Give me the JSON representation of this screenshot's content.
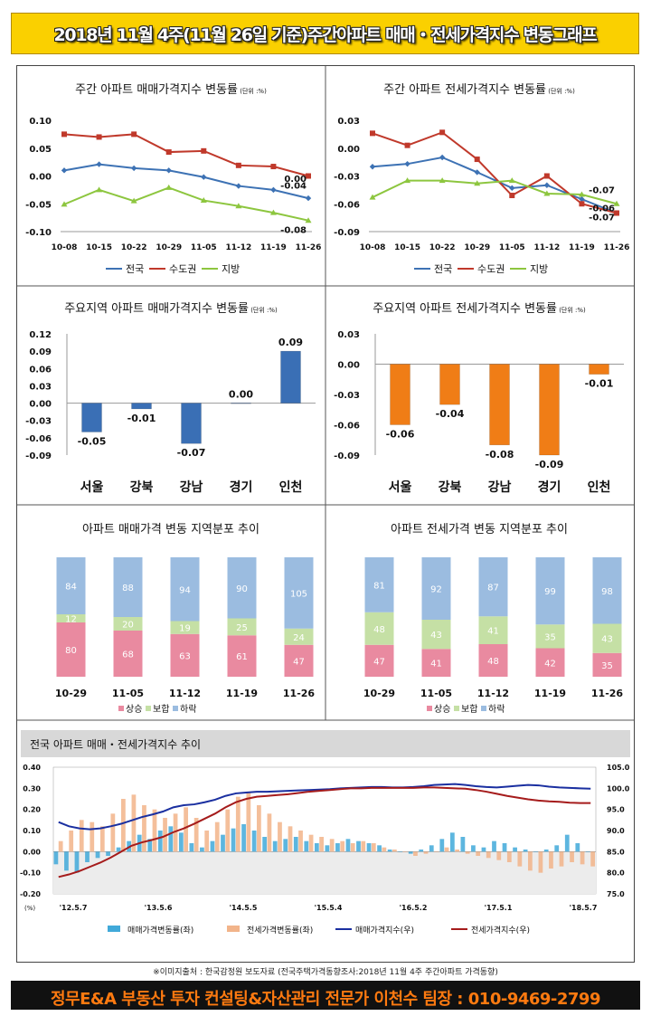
{
  "header": {
    "title": "2018년 11월 4주(11월 26일 기준)주간아파트 매매・전세가격지수 변동그래프"
  },
  "footer": {
    "text": "정무E&A 부동산 투자 컨설팅&자산관리 전문가 이천수 팀장 : 010-9469-2799"
  },
  "source": "※이미지출처 : 한국감정원 보도자료 (전국주택가격동향조사:2018년 11월 4주 주간아파트 가격동향)",
  "chart_data": [
    {
      "id": "weekly-sale",
      "type": "line",
      "title": "주간 아파트 매매가격지수 변동률",
      "unit": "(단위 :%)",
      "categories": [
        "10-08",
        "10-15",
        "10-22",
        "10-29",
        "11-05",
        "11-12",
        "11-19",
        "11-26"
      ],
      "ylim": [
        -0.1,
        0.1
      ],
      "yticks": [
        "0.10",
        "0.05",
        "0.00",
        "-0.05",
        "-0.10"
      ],
      "series": [
        {
          "name": "전국",
          "color": "#3d72b4",
          "values": [
            0.01,
            0.021,
            0.014,
            0.01,
            -0.002,
            -0.018,
            -0.025,
            -0.04
          ]
        },
        {
          "name": "수도권",
          "color": "#c0392b",
          "values": [
            0.075,
            0.07,
            0.075,
            0.043,
            0.045,
            0.019,
            0.017,
            0.0
          ]
        },
        {
          "name": "지방",
          "color": "#8dc63f",
          "values": [
            -0.051,
            -0.025,
            -0.045,
            -0.021,
            -0.044,
            -0.054,
            -0.066,
            -0.08
          ]
        }
      ],
      "end_labels": [
        "0.00",
        "-0.04",
        "-0.08"
      ]
    },
    {
      "id": "weekly-jeonse",
      "type": "line",
      "title": "주간 아파트 전세가격지수 변동률",
      "unit": "(단위 :%)",
      "categories": [
        "10-08",
        "10-15",
        "10-22",
        "10-29",
        "11-05",
        "11-12",
        "11-19",
        "11-26"
      ],
      "ylim": [
        -0.09,
        0.03
      ],
      "yticks": [
        "0.03",
        "0.00",
        "-0.03",
        "-0.06",
        "-0.09"
      ],
      "series": [
        {
          "name": "전국",
          "color": "#3d72b4",
          "values": [
            -0.02,
            -0.017,
            -0.01,
            -0.026,
            -0.043,
            -0.04,
            -0.055,
            -0.07
          ]
        },
        {
          "name": "수도권",
          "color": "#c0392b",
          "values": [
            0.016,
            0.003,
            0.017,
            -0.012,
            -0.051,
            -0.03,
            -0.06,
            -0.07
          ]
        },
        {
          "name": "지방",
          "color": "#8dc63f",
          "values": [
            -0.053,
            -0.035,
            -0.035,
            -0.038,
            -0.035,
            -0.049,
            -0.05,
            -0.06
          ]
        }
      ],
      "end_labels": [
        "-0.07",
        "-0.06",
        "-0.07"
      ]
    },
    {
      "id": "region-sale",
      "type": "bar",
      "title": "주요지역 아파트 매매가격지수 변동률",
      "unit": "(단위 :%)",
      "categories": [
        "서울",
        "강북",
        "강남",
        "경기",
        "인천"
      ],
      "values": [
        -0.05,
        -0.01,
        -0.07,
        0.0,
        0.09
      ],
      "labels": [
        "-0.05",
        "-0.01",
        "-0.07",
        "0.00",
        "0.09"
      ],
      "ylim": [
        -0.09,
        0.12
      ],
      "yticks": [
        "0.12",
        "0.09",
        "0.06",
        "0.03",
        "0.00",
        "-0.03",
        "-0.06",
        "-0.09"
      ],
      "color": "#3a6fb5"
    },
    {
      "id": "region-jeonse",
      "type": "bar",
      "title": "주요지역 아파트 전세가격지수 변동률",
      "unit": "(단위 :%)",
      "categories": [
        "서울",
        "강북",
        "강남",
        "경기",
        "인천"
      ],
      "values": [
        -0.06,
        -0.04,
        -0.08,
        -0.09,
        -0.01
      ],
      "labels": [
        "-0.06",
        "-0.04",
        "-0.08",
        "-0.09",
        "-0.01"
      ],
      "ylim": [
        -0.09,
        0.03
      ],
      "yticks": [
        "0.03",
        "0.00",
        "-0.03",
        "-0.06",
        "-0.09"
      ],
      "color": "#f07d16"
    },
    {
      "id": "dist-sale",
      "type": "bar",
      "stacked": true,
      "title": "아파트 매매가격 변동 지역분포 추이",
      "categories": [
        "10-29",
        "11-05",
        "11-12",
        "11-19",
        "11-26"
      ],
      "series": [
        {
          "name": "상승",
          "color": "#e98aa0",
          "values": [
            80,
            68,
            63,
            61,
            47
          ]
        },
        {
          "name": "보합",
          "color": "#c5e0a5",
          "values": [
            12,
            20,
            19,
            25,
            24
          ]
        },
        {
          "name": "하락",
          "color": "#9bbce0",
          "values": [
            84,
            88,
            94,
            90,
            105
          ]
        }
      ]
    },
    {
      "id": "dist-jeonse",
      "type": "bar",
      "stacked": true,
      "title": "아파트 전세가격 변동 지역분포 추이",
      "categories": [
        "10-29",
        "11-05",
        "11-12",
        "11-19",
        "11-26"
      ],
      "series": [
        {
          "name": "상승",
          "color": "#e98aa0",
          "values": [
            47,
            41,
            48,
            42,
            35
          ]
        },
        {
          "name": "보합",
          "color": "#c5e0a5",
          "values": [
            48,
            43,
            41,
            35,
            43
          ]
        },
        {
          "name": "하락",
          "color": "#9bbce0",
          "values": [
            81,
            92,
            87,
            99,
            98
          ]
        }
      ]
    },
    {
      "id": "long-trend",
      "type": "line",
      "title": "전국 아파트 매매・전세가격지수 추이",
      "y_left_unit": "(%)",
      "ylim_left": [
        -0.2,
        0.4
      ],
      "yticks_left": [
        "0.40",
        "0.30",
        "0.20",
        "0.10",
        "0.00",
        "-0.10",
        "-0.20"
      ],
      "ylim_right": [
        75.0,
        105.0
      ],
      "yticks_right": [
        "105.0",
        "100.0",
        "95.0",
        "90.0",
        "85.0",
        "80.0",
        "75.0"
      ],
      "x_labels": [
        "'12.5.7",
        "'13.5.6",
        "'14.5.5",
        "'15.5.4",
        "'16.5.2",
        "'17.5.1",
        "'18.5.7"
      ],
      "series": [
        {
          "name": "매매가격변동률(좌)",
          "color": "#41a9d9",
          "kind": "bar",
          "values": [
            -0.06,
            -0.09,
            -0.1,
            -0.05,
            -0.03,
            -0.02,
            0.02,
            0.05,
            0.08,
            0.06,
            0.1,
            0.12,
            0.09,
            0.04,
            0.02,
            0.05,
            0.08,
            0.11,
            0.13,
            0.1,
            0.07,
            0.05,
            0.06,
            0.07,
            0.05,
            0.04,
            0.03,
            0.04,
            0.06,
            0.05,
            0.04,
            0.03,
            0.01,
            0.0,
            -0.01,
            0.01,
            0.03,
            0.06,
            0.09,
            0.07,
            0.03,
            0.02,
            0.05,
            0.04,
            0.02,
            0.01,
            0.0,
            0.01,
            0.03,
            0.08,
            0.04,
            0.0
          ]
        },
        {
          "name": "전세가격변동률(좌)",
          "color": "#f2b48a",
          "kind": "bar",
          "values": [
            0.05,
            0.1,
            0.15,
            0.14,
            0.12,
            0.18,
            0.25,
            0.27,
            0.22,
            0.2,
            0.16,
            0.18,
            0.21,
            0.16,
            0.1,
            0.14,
            0.2,
            0.26,
            0.28,
            0.22,
            0.18,
            0.14,
            0.12,
            0.1,
            0.08,
            0.07,
            0.06,
            0.05,
            0.04,
            0.05,
            0.04,
            0.02,
            0.01,
            0.0,
            -0.02,
            -0.01,
            0.0,
            0.02,
            0.01,
            -0.01,
            -0.02,
            -0.03,
            -0.04,
            -0.05,
            -0.07,
            -0.09,
            -0.1,
            -0.08,
            -0.07,
            -0.05,
            -0.06,
            -0.07
          ]
        },
        {
          "name": "매매가격지수(우)",
          "color": "#1a2fa0",
          "kind": "line",
          "values": [
            92.0,
            91.0,
            90.5,
            90.3,
            90.5,
            91.0,
            91.6,
            92.4,
            93.2,
            93.8,
            94.5,
            95.5,
            96.0,
            96.2,
            96.7,
            97.3,
            98.2,
            98.8,
            99.0,
            99.2,
            99.2,
            99.3,
            99.4,
            99.5,
            99.6,
            99.7,
            99.8,
            100.0,
            100.1,
            100.2,
            100.3,
            100.3,
            100.2,
            100.2,
            100.3,
            100.5,
            100.8,
            100.9,
            101.0,
            100.8,
            100.5,
            100.3,
            100.2,
            100.4,
            100.6,
            100.8,
            100.7,
            100.4,
            100.2,
            100.1,
            100.0,
            99.9
          ]
        },
        {
          "name": "전세가격지수(우)",
          "color": "#a51b1b",
          "kind": "line",
          "values": [
            79.0,
            79.6,
            80.4,
            81.4,
            82.4,
            83.6,
            85.0,
            86.4,
            87.2,
            87.8,
            88.5,
            89.6,
            90.5,
            91.6,
            92.8,
            94.0,
            95.5,
            96.7,
            97.5,
            98.0,
            98.2,
            98.4,
            98.6,
            98.9,
            99.2,
            99.4,
            99.6,
            99.8,
            100.0,
            100.0,
            100.1,
            100.1,
            100.1,
            100.1,
            100.1,
            100.2,
            100.2,
            100.1,
            100.0,
            99.9,
            99.6,
            99.2,
            98.7,
            98.2,
            97.8,
            97.4,
            97.1,
            96.9,
            96.8,
            96.6,
            96.5,
            96.5
          ]
        }
      ]
    }
  ]
}
